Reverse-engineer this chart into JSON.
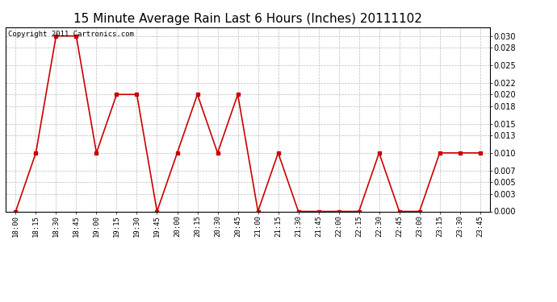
{
  "title": "15 Minute Average Rain Last 6 Hours (Inches) 20111102",
  "copyright_text": "Copyright 2011 Cartronics.com",
  "x_labels": [
    "18:00",
    "18:15",
    "18:30",
    "18:45",
    "19:00",
    "19:15",
    "19:30",
    "19:45",
    "20:00",
    "20:15",
    "20:30",
    "20:45",
    "21:00",
    "21:15",
    "21:30",
    "21:45",
    "22:00",
    "22:15",
    "22:30",
    "22:45",
    "23:00",
    "23:15",
    "23:30",
    "23:45"
  ],
  "y_values": [
    0.0,
    0.01,
    0.03,
    0.03,
    0.01,
    0.02,
    0.02,
    0.0,
    0.01,
    0.02,
    0.01,
    0.02,
    0.0,
    0.01,
    0.0,
    0.0,
    0.0,
    0.0,
    0.01,
    0.0,
    0.0,
    0.01,
    0.01,
    0.01
  ],
  "line_color": "#cc0000",
  "marker": "s",
  "marker_size": 2.5,
  "line_width": 1.2,
  "ylim": [
    0.0,
    0.0315
  ],
  "yticks": [
    0.0,
    0.003,
    0.005,
    0.007,
    0.01,
    0.013,
    0.015,
    0.018,
    0.02,
    0.022,
    0.025,
    0.028,
    0.03
  ],
  "background_color": "#ffffff",
  "grid_color": "#bbbbbb",
  "title_fontsize": 11,
  "copyright_fontsize": 6.5,
  "tick_fontsize": 6.5,
  "ytick_fontsize": 7
}
